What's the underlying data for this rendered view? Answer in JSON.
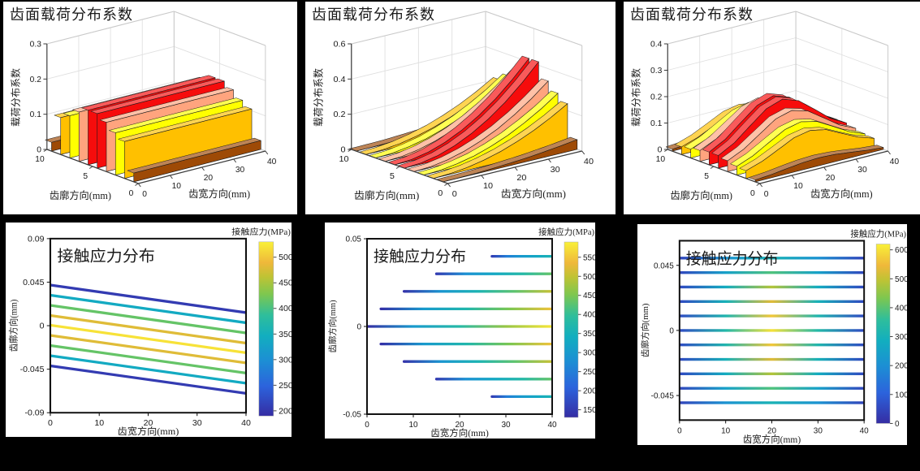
{
  "figure": {
    "background": "#000000",
    "panel_background": "#ffffff"
  },
  "colormap": [
    {
      "t": 0.0,
      "c": "#352DA3"
    },
    {
      "t": 0.17,
      "c": "#2C63DC"
    },
    {
      "t": 0.32,
      "c": "#1C8FD4"
    },
    {
      "t": 0.46,
      "c": "#12AEBF"
    },
    {
      "t": 0.58,
      "c": "#2FBE9B"
    },
    {
      "t": 0.7,
      "c": "#7EC74F"
    },
    {
      "t": 0.8,
      "c": "#BFC334"
    },
    {
      "t": 0.88,
      "c": "#EFB83A"
    },
    {
      "t": 1.0,
      "c": "#F9F038"
    }
  ],
  "ribbon_palette": [
    "#9E4A06",
    "#FFC000",
    "#FFFF00",
    "#FFA47E",
    "#F60C0C",
    "#F60C0C",
    "#FFA47E",
    "#FFFF00",
    "#FFC000",
    "#9E4A06"
  ],
  "chart_data": [
    {
      "type": "ribbon3d",
      "title": "齿面载荷分布系数",
      "zlabel": "载荷分布系数",
      "xlabel": "齿廓方向(mm)",
      "ylabel": "齿宽方向(mm)",
      "zticks": [
        "0",
        "0.1",
        "0.2",
        "0.3"
      ],
      "zmax": 0.3,
      "profile_ticks": [
        "0",
        "5",
        "10"
      ],
      "width_ticks": [
        "0",
        "10",
        "20",
        "30",
        "40"
      ],
      "width_samples": [
        0,
        5,
        10,
        15,
        20,
        25,
        30,
        35,
        40
      ],
      "ribbons": [
        {
          "profile": 0.5,
          "heights": [
            0.025,
            0.025,
            0.025,
            0.025,
            0.025,
            0.025,
            0.025,
            0.025,
            0.025
          ]
        },
        {
          "profile": 1.5,
          "heights": [
            0.105,
            0.105,
            0.105,
            0.105,
            0.105,
            0.105,
            0.105,
            0.105,
            0.105
          ]
        },
        {
          "profile": 2.5,
          "heights": [
            0.12,
            0.12,
            0.12,
            0.12,
            0.12,
            0.12,
            0.12,
            0.12,
            0.12
          ]
        },
        {
          "profile": 3.5,
          "heights": [
            0.14,
            0.14,
            0.14,
            0.14,
            0.14,
            0.14,
            0.14,
            0.14,
            0.14
          ]
        },
        {
          "profile": 4.5,
          "heights": [
            0.155,
            0.155,
            0.155,
            0.155,
            0.155,
            0.155,
            0.155,
            0.155,
            0.155
          ]
        },
        {
          "profile": 5.5,
          "heights": [
            0.155,
            0.155,
            0.155,
            0.155,
            0.155,
            0.155,
            0.155,
            0.155,
            0.155
          ]
        },
        {
          "profile": 6.5,
          "heights": [
            0.14,
            0.14,
            0.14,
            0.14,
            0.14,
            0.14,
            0.14,
            0.14,
            0.14
          ]
        },
        {
          "profile": 7.5,
          "heights": [
            0.12,
            0.12,
            0.12,
            0.12,
            0.12,
            0.12,
            0.12,
            0.12,
            0.12
          ]
        },
        {
          "profile": 8.5,
          "heights": [
            0.105,
            0.105,
            0.105,
            0.105,
            0.105,
            0.105,
            0.105,
            0.105,
            0.105
          ]
        },
        {
          "profile": 9.5,
          "heights": [
            0.025,
            0.025,
            0.025,
            0.025,
            0.025,
            0.025,
            0.025,
            0.025,
            0.025
          ]
        }
      ]
    },
    {
      "type": "ribbon3d",
      "title": "齿面载荷分布系数",
      "zlabel": "载荷分布系数",
      "xlabel": "齿廓方向(mm)",
      "ylabel": "齿宽方向(mm)",
      "zticks": [
        "0",
        "0.2",
        "0.4",
        "0.6"
      ],
      "zmax": 0.6,
      "profile_ticks": [
        "0",
        "5",
        "10"
      ],
      "width_ticks": [
        "0",
        "10",
        "20",
        "30",
        "40"
      ],
      "width_samples": [
        0,
        5,
        10,
        15,
        20,
        25,
        30,
        35,
        40
      ],
      "ribbons": [
        {
          "profile": 0.5,
          "heights": [
            0,
            0.001,
            0.003,
            0.008,
            0.014,
            0.021,
            0.031,
            0.042,
            0.055
          ]
        },
        {
          "profile": 1.5,
          "heights": [
            0,
            0.004,
            0.015,
            0.034,
            0.06,
            0.094,
            0.135,
            0.184,
            0.24
          ]
        },
        {
          "profile": 2.5,
          "heights": [
            0,
            0.004,
            0.018,
            0.039,
            0.07,
            0.109,
            0.158,
            0.214,
            0.28
          ]
        },
        {
          "profile": 3.5,
          "heights": [
            0,
            0.005,
            0.021,
            0.047,
            0.083,
            0.129,
            0.186,
            0.253,
            0.33
          ]
        },
        {
          "profile": 4.5,
          "heights": [
            0,
            0.007,
            0.026,
            0.059,
            0.105,
            0.164,
            0.236,
            0.322,
            0.42
          ]
        },
        {
          "profile": 5.5,
          "heights": [
            0,
            0.007,
            0.026,
            0.059,
            0.105,
            0.164,
            0.236,
            0.322,
            0.42
          ]
        },
        {
          "profile": 6.5,
          "heights": [
            0,
            0.005,
            0.021,
            0.047,
            0.083,
            0.129,
            0.186,
            0.253,
            0.33
          ]
        },
        {
          "profile": 7.5,
          "heights": [
            0,
            0.004,
            0.018,
            0.039,
            0.07,
            0.109,
            0.158,
            0.214,
            0.28
          ]
        },
        {
          "profile": 8.5,
          "heights": [
            0,
            0.004,
            0.015,
            0.034,
            0.06,
            0.094,
            0.135,
            0.184,
            0.24
          ]
        },
        {
          "profile": 9.5,
          "heights": [
            0,
            0.001,
            0.003,
            0.008,
            0.014,
            0.021,
            0.031,
            0.042,
            0.055
          ]
        }
      ]
    },
    {
      "type": "ribbon3d",
      "title": "齿面载荷分布系数",
      "zlabel": "载荷分布系数",
      "xlabel": "齿廓方向(mm)",
      "ylabel": "齿宽方向(mm)",
      "zticks": [
        "0",
        "0.1",
        "0.2",
        "0.3",
        "0.4"
      ],
      "zmax": 0.4,
      "profile_ticks": [
        "0",
        "5",
        "10"
      ],
      "width_ticks": [
        "0",
        "10",
        "20",
        "30",
        "40"
      ],
      "width_samples": [
        0,
        5,
        10,
        15,
        20,
        25,
        30,
        35,
        40
      ],
      "ribbons": [
        {
          "profile": 0.5,
          "heights": [
            0.007,
            0.012,
            0.02,
            0.027,
            0.03,
            0.027,
            0.02,
            0.012,
            0.007
          ]
        },
        {
          "profile": 1.5,
          "heights": [
            0.029,
            0.049,
            0.078,
            0.108,
            0.12,
            0.108,
            0.078,
            0.049,
            0.029
          ]
        },
        {
          "profile": 2.5,
          "heights": [
            0.033,
            0.057,
            0.092,
            0.126,
            0.14,
            0.126,
            0.092,
            0.057,
            0.033
          ]
        },
        {
          "profile": 3.5,
          "heights": [
            0.041,
            0.069,
            0.111,
            0.153,
            0.17,
            0.153,
            0.111,
            0.069,
            0.041
          ]
        },
        {
          "profile": 4.5,
          "heights": [
            0.048,
            0.081,
            0.131,
            0.179,
            0.2,
            0.179,
            0.131,
            0.081,
            0.048
          ]
        },
        {
          "profile": 5.5,
          "heights": [
            0.048,
            0.081,
            0.131,
            0.179,
            0.2,
            0.179,
            0.131,
            0.081,
            0.048
          ]
        },
        {
          "profile": 6.5,
          "heights": [
            0.041,
            0.069,
            0.111,
            0.153,
            0.17,
            0.153,
            0.111,
            0.069,
            0.041
          ]
        },
        {
          "profile": 7.5,
          "heights": [
            0.033,
            0.057,
            0.092,
            0.126,
            0.14,
            0.126,
            0.092,
            0.057,
            0.033
          ]
        },
        {
          "profile": 8.5,
          "heights": [
            0.029,
            0.049,
            0.078,
            0.108,
            0.12,
            0.108,
            0.078,
            0.049,
            0.029
          ]
        },
        {
          "profile": 9.5,
          "heights": [
            0.007,
            0.012,
            0.02,
            0.027,
            0.03,
            0.027,
            0.02,
            0.012,
            0.007
          ]
        }
      ]
    },
    {
      "type": "lines2d",
      "title": "接触应力分布",
      "xlabel": "齿宽方向(mm)",
      "ylabel": "齿廓方向(mm)",
      "colorbar_title": "接触应力(MPa)",
      "xticks": [
        "0",
        "10",
        "20",
        "30",
        "40"
      ],
      "xlim": [
        0,
        40
      ],
      "yticks": [
        "0.09",
        "0.045",
        "0",
        "-0.045",
        "-0.09"
      ],
      "ylim": [
        -0.09,
        0.09
      ],
      "clim": [
        190,
        530
      ],
      "cticks": [
        "200",
        "250",
        "300",
        "350",
        "400",
        "450",
        "500"
      ],
      "lines": [
        {
          "x0": 0,
          "x1": 40,
          "y0": 0.042,
          "y1": 0.0135,
          "stress": [
            205,
            205
          ]
        },
        {
          "x0": 0,
          "x1": 40,
          "y0": 0.0315,
          "y1": 0.003,
          "stress": [
            340,
            340
          ]
        },
        {
          "x0": 0,
          "x1": 40,
          "y0": 0.021,
          "y1": -0.0075,
          "stress": [
            415,
            415
          ]
        },
        {
          "x0": 0,
          "x1": 40,
          "y0": 0.0105,
          "y1": -0.018,
          "stress": [
            480,
            480
          ]
        },
        {
          "x0": 0,
          "x1": 40,
          "y0": 0.0005,
          "y1": -0.028,
          "stress": [
            520,
            520
          ]
        },
        {
          "x0": 0,
          "x1": 40,
          "y0": -0.01,
          "y1": -0.0385,
          "stress": [
            480,
            480
          ]
        },
        {
          "x0": 0,
          "x1": 40,
          "y0": -0.0205,
          "y1": -0.049,
          "stress": [
            415,
            415
          ]
        },
        {
          "x0": 0,
          "x1": 40,
          "y0": -0.031,
          "y1": -0.0595,
          "stress": [
            340,
            340
          ]
        },
        {
          "x0": 0,
          "x1": 40,
          "y0": -0.0415,
          "y1": -0.07,
          "stress": [
            205,
            205
          ]
        }
      ]
    },
    {
      "type": "lines2d",
      "title": "接触应力分布",
      "xlabel": "齿宽方向(mm)",
      "ylabel": "齿廓方向(mm)",
      "colorbar_title": "接触应力(MPa)",
      "xticks": [
        "0",
        "10",
        "20",
        "30",
        "40"
      ],
      "xlim": [
        0,
        40
      ],
      "yticks": [
        "0.05",
        "0",
        "-0.05"
      ],
      "ylim": [
        -0.05,
        0.05
      ],
      "clim": [
        130,
        590
      ],
      "cticks": [
        "150",
        "200",
        "250",
        "300",
        "350",
        "400",
        "450",
        "500",
        "550"
      ],
      "round_caps": true,
      "lines": [
        {
          "x0": 27,
          "x1": 40,
          "y0": 0.04,
          "y1": 0.04,
          "stress": [
            155,
            250,
            300,
            330,
            360
          ]
        },
        {
          "x0": 15,
          "x1": 40,
          "y0": 0.03,
          "y1": 0.03,
          "stress": [
            150,
            280,
            330,
            380,
            435
          ]
        },
        {
          "x0": 8,
          "x1": 40,
          "y0": 0.02,
          "y1": 0.02,
          "stress": [
            140,
            290,
            360,
            430,
            505
          ]
        },
        {
          "x0": 3,
          "x1": 40,
          "y0": 0.01,
          "y1": 0.01,
          "stress": [
            135,
            300,
            370,
            450,
            545
          ]
        },
        {
          "x0": 0,
          "x1": 40,
          "y0": 0,
          "y1": 0,
          "stress": [
            130,
            300,
            380,
            470,
            580
          ]
        },
        {
          "x0": 3,
          "x1": 40,
          "y0": -0.01,
          "y1": -0.01,
          "stress": [
            135,
            300,
            370,
            450,
            545
          ]
        },
        {
          "x0": 8,
          "x1": 40,
          "y0": -0.02,
          "y1": -0.02,
          "stress": [
            140,
            290,
            360,
            430,
            505
          ]
        },
        {
          "x0": 15,
          "x1": 40,
          "y0": -0.03,
          "y1": -0.03,
          "stress": [
            150,
            280,
            330,
            380,
            435
          ]
        },
        {
          "x0": 27,
          "x1": 40,
          "y0": -0.04,
          "y1": -0.04,
          "stress": [
            155,
            250,
            300,
            330,
            360
          ]
        }
      ]
    },
    {
      "type": "lines2d",
      "title": "接触应力分布",
      "xlabel": "齿宽方向(mm)",
      "ylabel": "齿廓方向(mm)",
      "colorbar_title": "接触应力(MPa)",
      "xticks": [
        "0",
        "10",
        "20",
        "30",
        "40"
      ],
      "xlim": [
        0,
        40
      ],
      "yticks": [
        "0.045",
        "0",
        "-0.045"
      ],
      "ylim": [
        -0.062,
        0.062
      ],
      "clim": [
        0,
        620
      ],
      "cticks": [
        "0",
        "100",
        "200",
        "300",
        "400",
        "500",
        "600"
      ],
      "lines": [
        {
          "x0": 0,
          "x1": 40,
          "y0": 0.05,
          "y1": 0.05,
          "stress": [
            45,
            210,
            305,
            210,
            45
          ]
        },
        {
          "x0": 0,
          "x1": 40,
          "y0": 0.04,
          "y1": 0.04,
          "stress": [
            50,
            250,
            390,
            250,
            50
          ]
        },
        {
          "x0": 0,
          "x1": 40,
          "y0": 0.03,
          "y1": 0.03,
          "stress": [
            55,
            280,
            485,
            280,
            55
          ]
        },
        {
          "x0": 0,
          "x1": 40,
          "y0": 0.02,
          "y1": 0.02,
          "stress": [
            55,
            300,
            530,
            300,
            55
          ]
        },
        {
          "x0": 0,
          "x1": 40,
          "y0": 0.01,
          "y1": 0.01,
          "stress": [
            60,
            320,
            565,
            320,
            60
          ]
        },
        {
          "x0": 0,
          "x1": 40,
          "y0": 0,
          "y1": 0,
          "stress": [
            60,
            330,
            600,
            330,
            60
          ]
        },
        {
          "x0": 0,
          "x1": 40,
          "y0": -0.01,
          "y1": -0.01,
          "stress": [
            60,
            320,
            565,
            320,
            60
          ]
        },
        {
          "x0": 0,
          "x1": 40,
          "y0": -0.02,
          "y1": -0.02,
          "stress": [
            55,
            300,
            530,
            300,
            55
          ]
        },
        {
          "x0": 0,
          "x1": 40,
          "y0": -0.03,
          "y1": -0.03,
          "stress": [
            55,
            280,
            485,
            280,
            55
          ]
        },
        {
          "x0": 0,
          "x1": 40,
          "y0": -0.04,
          "y1": -0.04,
          "stress": [
            50,
            250,
            390,
            250,
            50
          ]
        },
        {
          "x0": 0,
          "x1": 40,
          "y0": -0.05,
          "y1": -0.05,
          "stress": [
            45,
            210,
            305,
            210,
            45
          ]
        }
      ]
    }
  ]
}
